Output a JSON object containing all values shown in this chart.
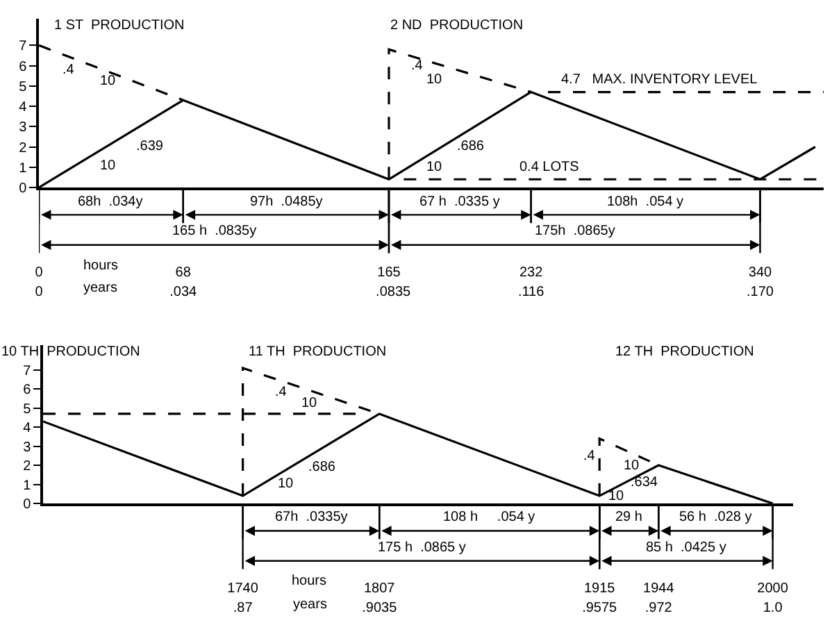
{
  "chart_data": [
    {
      "type": "line",
      "marker": "none",
      "xlabel": "hours",
      "x2label": "years",
      "xlim": [
        0,
        370
      ],
      "ylim": [
        0,
        8.3
      ],
      "yticks": [
        0,
        1,
        2,
        3,
        4,
        5,
        6,
        7
      ],
      "xticks": [
        0,
        68,
        165,
        232,
        340
      ],
      "x2lim": [
        0,
        0.185
      ],
      "x2ticks": [
        {
          "value": 0,
          "label": "0"
        },
        {
          "value": 0.034,
          "label": ".034"
        },
        {
          "value": 0.0835,
          "label": ".0835"
        },
        {
          "value": 0.116,
          "label": ".116"
        },
        {
          "value": 0.17,
          "label": ".170"
        }
      ],
      "series": [
        {
          "color": "#000000",
          "line_style": "solid",
          "x": [
            0,
            68,
            165,
            232,
            340,
            366
          ],
          "values": [
            0,
            4.3,
            0.4,
            4.7,
            0.4,
            2.0
          ]
        },
        {
          "color": "#000000",
          "line_style": "dashed",
          "x": [
            0,
            68
          ],
          "values": [
            7,
            4.3
          ]
        },
        {
          "color": "#000000",
          "line_style": "dashed",
          "x": [
            165,
            165,
            232
          ],
          "values": [
            0.4,
            6.8,
            4.7
          ]
        },
        {
          "color": "#000000",
          "line_style": "dashed",
          "x": [
            240,
            370
          ],
          "values": [
            4.7,
            4.7
          ]
        },
        {
          "color": "#000000",
          "line_style": "dashed",
          "x": [
            172,
            370
          ],
          "values": [
            0.4,
            0.4
          ]
        }
      ],
      "annotations": [
        "1 ST  PRODUCTION",
        "2 ND  PRODUCTION",
        ".4",
        "10",
        ".639",
        "10",
        ".4",
        "10",
        ".686",
        "10",
        "68h  .034y",
        "97h  .0485y",
        "165 h  .0835y",
        "67 h  .0335 y",
        "108h  .054 y",
        "175h  .0865y",
        {
          "text": "4.7   MAX. INVENTORY LEVEL",
          "x": 245,
          "y": 4.7
        },
        {
          "text": "0.4 LOTS",
          "x": 225,
          "y": 0.4
        }
      ]
    },
    {
      "type": "line",
      "marker": "none",
      "xlabel": "hours",
      "x2label": "years",
      "xlim": [
        1642,
        2010
      ],
      "ylim": [
        0,
        8.3
      ],
      "yticks": [
        0,
        1,
        2,
        3,
        4,
        5,
        6,
        7
      ],
      "xticks": [
        1740,
        1807,
        1915,
        1944,
        2000
      ],
      "x2lim": [
        0.821,
        1.005
      ],
      "x2ticks": [
        {
          "value": 0.87,
          "label": ".87"
        },
        {
          "value": 0.9035,
          "label": ".9035"
        },
        {
          "value": 0.9575,
          "label": ".9575"
        },
        {
          "value": 0.972,
          "label": ".972"
        },
        {
          "value": 1,
          "label": "1.0"
        }
      ],
      "series": [
        {
          "color": "#000000",
          "line_style": "solid",
          "x": [
            1642,
            1740,
            1807,
            1915,
            1944,
            2000
          ],
          "values": [
            4.3,
            0.4,
            4.7,
            0.4,
            2.0,
            0
          ]
        },
        {
          "color": "#000000",
          "line_style": "dashed",
          "x": [
            1642,
            1800
          ],
          "values": [
            4.7,
            4.7
          ]
        },
        {
          "color": "#000000",
          "line_style": "dashed",
          "x": [
            1740,
            1740,
            1807
          ],
          "values": [
            0.4,
            7.1,
            4.7
          ]
        },
        {
          "color": "#000000",
          "line_style": "dashed",
          "x": [
            1915,
            1915,
            1944
          ],
          "values": [
            0.4,
            3.4,
            2.0
          ]
        }
      ],
      "annotations": [
        "10 TH  PRODUCTION",
        "11 TH  PRODUCTION",
        "12 TH  PRODUCTION",
        ".4",
        "10",
        ".686",
        "10",
        ".4",
        "10",
        ".634",
        "10",
        "67h  .0335y",
        "108 h     .054 y",
        "175 h  .0865 y",
        "29 h",
        "56 h  .028 y",
        "85 h  .0425 y"
      ]
    }
  ]
}
